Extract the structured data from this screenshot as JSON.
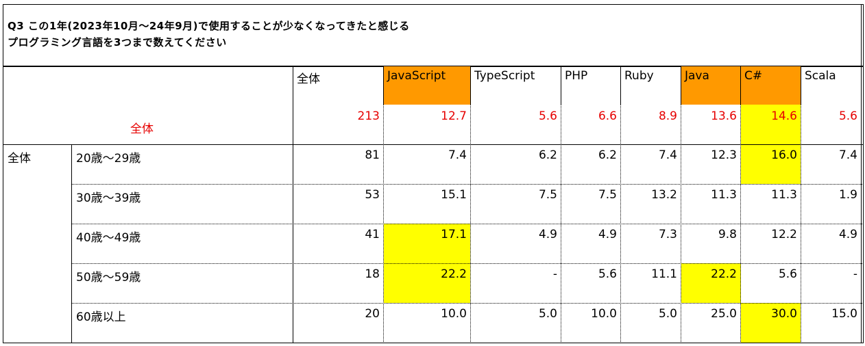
{
  "title_lines": [
    "Q3 この1年(2023年10月～24年9月)で使用することが少なくなってきたと感じる",
    "プログラミング言語を3つまで数えてください"
  ],
  "columns": [
    "全体",
    "JavaScript",
    "TypeScript",
    "PHP",
    "Ruby",
    "Java",
    "C#",
    "Scala"
  ],
  "total_row": {
    "label": "全体",
    "values": [
      "213",
      "12.7",
      "5.6",
      "6.6",
      "8.9",
      "13.6",
      "14.6",
      "5.6"
    ]
  },
  "group_label": "全体",
  "rows": [
    {
      "label": "20歳～29歳",
      "values": [
        "81",
        "7.4",
        "6.2",
        "6.2",
        "7.4",
        "12.3",
        "16.0",
        "7.4"
      ]
    },
    {
      "label": "30歳～39歳",
      "values": [
        "53",
        "15.1",
        "7.5",
        "7.5",
        "13.2",
        "11.3",
        "11.3",
        "1.9"
      ]
    },
    {
      "label": "40歳～49歳",
      "values": [
        "41",
        "17.1",
        "4.9",
        "4.9",
        "7.3",
        "9.8",
        "12.2",
        "4.9"
      ]
    },
    {
      "label": "50歳～59歳",
      "values": [
        "18",
        "22.2",
        "-",
        "5.6",
        "11.1",
        "22.2",
        "5.6",
        "-"
      ]
    },
    {
      "label": "60歳以上",
      "values": [
        "20",
        "10.0",
        "5.0",
        "10.0",
        "5.0",
        "25.0",
        "30.0",
        "15.0"
      ]
    }
  ],
  "colors": {
    "header_highlight": "#ff9900",
    "cell_highlight": "#ffff00",
    "total_text": "#e60000"
  }
}
